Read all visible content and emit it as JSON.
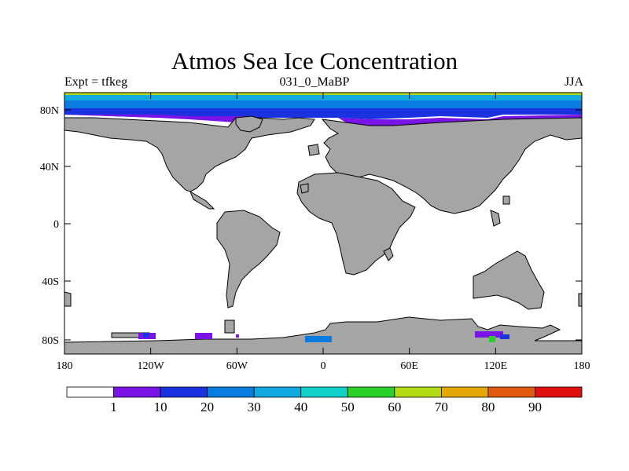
{
  "title": "Atmos Sea Ice Concentration",
  "subtitle_left": "Expt = tfkeg",
  "subtitle_center": "031_0_MaBP",
  "subtitle_right": "JJA",
  "lon_ticks": [
    "180",
    "120W",
    "60W",
    "0",
    "60E",
    "120E",
    "180"
  ],
  "lat_ticks": [
    "80N",
    "40N",
    "0",
    "40S",
    "80S"
  ],
  "colorbar": {
    "colors": [
      "#ffffff",
      "#7a14e6",
      "#1a32e0",
      "#0a7ce0",
      "#12a8e0",
      "#10d0c8",
      "#2ad02a",
      "#b4dc14",
      "#e4a808",
      "#e05a10",
      "#e01010"
    ],
    "labels": [
      "1",
      "10",
      "20",
      "30",
      "40",
      "50",
      "60",
      "70",
      "80",
      "90"
    ]
  },
  "colors": {
    "land": "#a5a5a5",
    "ocean": "#ffffff",
    "outline": "#000000"
  }
}
